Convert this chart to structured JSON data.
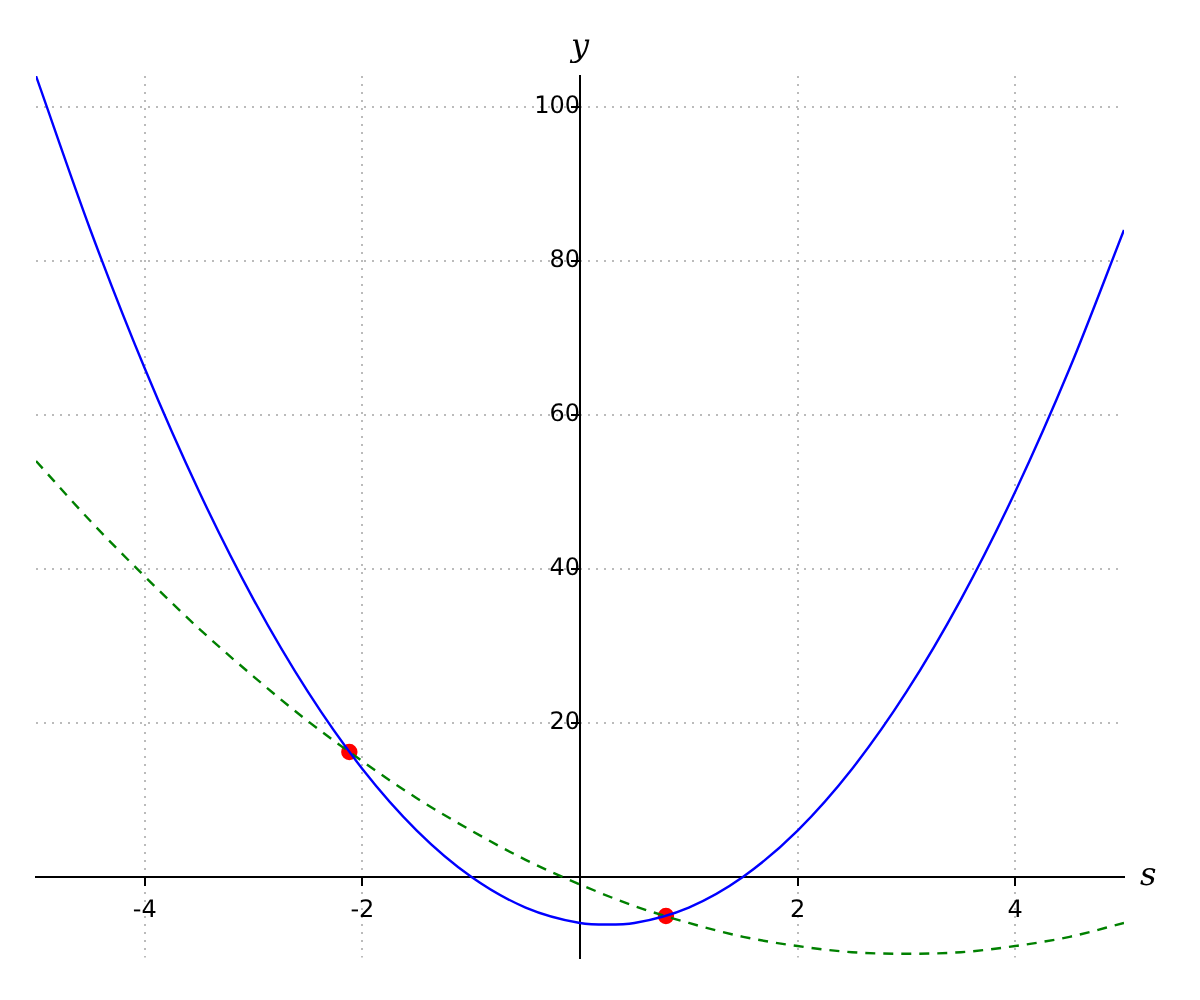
{
  "chart_data": {
    "type": "line",
    "xlabel": "s",
    "ylabel": "y",
    "xlim": [
      -5,
      5
    ],
    "ylim": [
      -10.5,
      104
    ],
    "xticks": [
      -4,
      -2,
      2,
      4
    ],
    "yticks": [
      20,
      40,
      60,
      80,
      100
    ],
    "grid": true,
    "series": [
      {
        "color": "#0000ff",
        "line_style": "solid",
        "marker": "none",
        "x": [
          -5,
          -4.5,
          -4,
          -3.5,
          -3,
          -2.5,
          -2,
          -1.5,
          -1,
          -0.5,
          0,
          0.25,
          0.5,
          1,
          1.5,
          2,
          2.5,
          3,
          3.5,
          4,
          4.5,
          5
        ],
        "values": [
          104,
          84,
          66,
          50,
          36,
          24,
          14,
          6,
          0,
          -4,
          -6,
          -6.2,
          -6,
          -4,
          0,
          6,
          14,
          24,
          36,
          50,
          66,
          84
        ]
      },
      {
        "color": "#008000",
        "line_style": "dashed",
        "marker": "none",
        "x": [
          -5,
          -4.5,
          -4,
          -3.5,
          -3,
          -2.5,
          -2,
          -1.5,
          -1,
          -0.5,
          0,
          0.5,
          1,
          1.5,
          2,
          2.5,
          3,
          3.5,
          4,
          4.5,
          5
        ],
        "values": [
          54,
          46.2,
          39,
          32.2,
          26,
          20.2,
          15,
          10.2,
          6,
          2.2,
          -1,
          -3.8,
          -6,
          -7.8,
          -9,
          -9.8,
          -10,
          -9.8,
          -9,
          -7.8,
          -6
        ]
      },
      {
        "type": "scatter",
        "color": "#ff0000",
        "marker": "circle",
        "x": [
          -2.12,
          0.79
        ],
        "values": [
          16.2,
          -5.1
        ]
      }
    ]
  }
}
